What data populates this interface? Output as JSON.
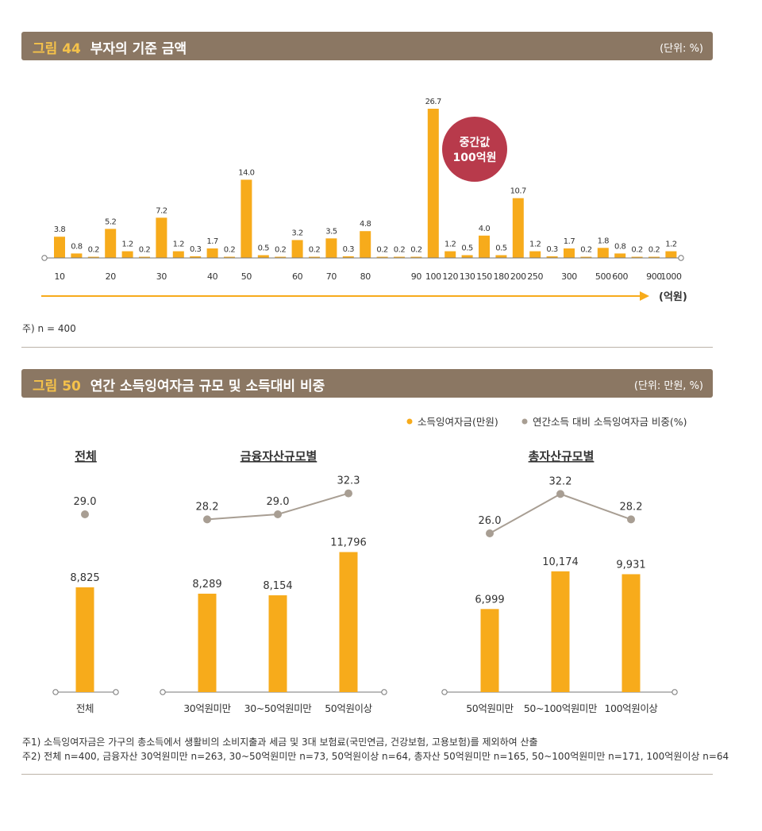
{
  "fig44": {
    "number": "그림 44",
    "title": "부자의 기준 금액",
    "unit": "(단위: %)",
    "note": "주) n = 400",
    "badge_line1": "중간값",
    "badge_line2": "100억원",
    "axis_unit": "(억원)"
  },
  "fig50": {
    "number": "그림 50",
    "title": "연간 소득잉여자금 규모 및 소득대비 비중",
    "unit": "(단위: 만원, %)",
    "legend": [
      "소득잉여자금(만원)",
      "연간소득 대비 소득잉여자금 비중(%)"
    ],
    "notes": [
      "주1) 소득잉여자금은 가구의 총소득에서 생활비의 소비지출과 세금 및 3대 보험료(국민연금, 건강보험, 고용보험)를 제외하여 산출",
      "주2) 전체 n=400, 금융자산 30억원미만 n=263, 30~50억원미만 n=73, 50억원이상 n=64, 총자산 50억원미만 n=165, 50~100억원미만 n=171, 100억원이상 n=64"
    ]
  },
  "colors": {
    "bar": "#f7ab1b",
    "line": "#a89e93",
    "banner": "#8b7763",
    "badge": "#b83a4b"
  },
  "chart_data": [
    {
      "type": "bar",
      "values": [
        3.8,
        0.8,
        0.2,
        5.2,
        1.2,
        0.2,
        7.2,
        1.2,
        0.3,
        1.7,
        0.2,
        14.0,
        0.5,
        0.2,
        3.2,
        0.2,
        3.5,
        0.3,
        4.8,
        0.2,
        0.2,
        0.2,
        26.7,
        1.2,
        0.5,
        4.0,
        0.5,
        10.7,
        1.2,
        0.3,
        1.7,
        0.2,
        1.8,
        0.8,
        0.2,
        0.2,
        1.2
      ],
      "value_labels": [
        "3.8",
        "0.8",
        "0.2",
        "5.2",
        "1.2",
        "0.2",
        "7.2",
        "1.2",
        "0.3",
        "1.7",
        "0.2",
        "14.0",
        "0.5",
        "0.2",
        "3.2",
        "0.2",
        "3.5",
        "0.3",
        "4.8",
        "0.2",
        "0.2",
        "0.2",
        "26.7",
        "1.2",
        "0.5",
        "4.0",
        "0.5",
        "10.7",
        "1.2",
        "0.3",
        "1.7",
        "0.2",
        "1.8",
        "0.8",
        "0.2",
        "0.2",
        "1.2"
      ],
      "tick_labels": [
        {
          "label": "10",
          "bar": 0
        },
        {
          "label": "20",
          "bar": 3
        },
        {
          "label": "30",
          "bar": 6
        },
        {
          "label": "40",
          "bar": 9
        },
        {
          "label": "50",
          "bar": 11
        },
        {
          "label": "60",
          "bar": 14
        },
        {
          "label": "70",
          "bar": 16
        },
        {
          "label": "80",
          "bar": 18
        },
        {
          "label": "90",
          "bar": 21
        },
        {
          "label": "100",
          "bar": 22
        },
        {
          "label": "120",
          "bar": 23
        },
        {
          "label": "130",
          "bar": 24
        },
        {
          "label": "150",
          "bar": 25
        },
        {
          "label": "180",
          "bar": 26
        },
        {
          "label": "200",
          "bar": 27
        },
        {
          "label": "250",
          "bar": 28
        },
        {
          "label": "300",
          "bar": 30
        },
        {
          "label": "500",
          "bar": 32
        },
        {
          "label": "600",
          "bar": 33
        },
        {
          "label": "900",
          "bar": 35
        },
        {
          "label": "1000",
          "bar": 36
        }
      ],
      "ylim": [
        0,
        30
      ]
    },
    {
      "type": "bar+line",
      "groups": [
        {
          "title": "전체",
          "categories": [
            "전체"
          ],
          "bar_values": [
            8825
          ],
          "bar_labels": [
            "8,825"
          ],
          "line_values": [
            29.0
          ],
          "line_labels": [
            "29.0"
          ]
        },
        {
          "title": "금융자산규모별",
          "categories": [
            "30억원미만",
            "30~50억원미만",
            "50억원이상"
          ],
          "bar_values": [
            8289,
            8154,
            11796
          ],
          "bar_labels": [
            "8,289",
            "8,154",
            "11,796"
          ],
          "line_values": [
            28.2,
            29.0,
            32.3
          ],
          "line_labels": [
            "28.2",
            "29.0",
            "32.3"
          ]
        },
        {
          "title": "총자산규모별",
          "categories": [
            "50억원미만",
            "50~100억원미만",
            "100억원이상"
          ],
          "bar_values": [
            6999,
            10174,
            9931
          ],
          "bar_labels": [
            "6,999",
            "10,174",
            "9,931"
          ],
          "line_values": [
            26.0,
            32.2,
            28.2
          ],
          "line_labels": [
            "26.0",
            "32.2",
            "28.2"
          ]
        }
      ],
      "bar_ylim": [
        0,
        15500
      ],
      "line_ylim": [
        20,
        34
      ]
    }
  ]
}
